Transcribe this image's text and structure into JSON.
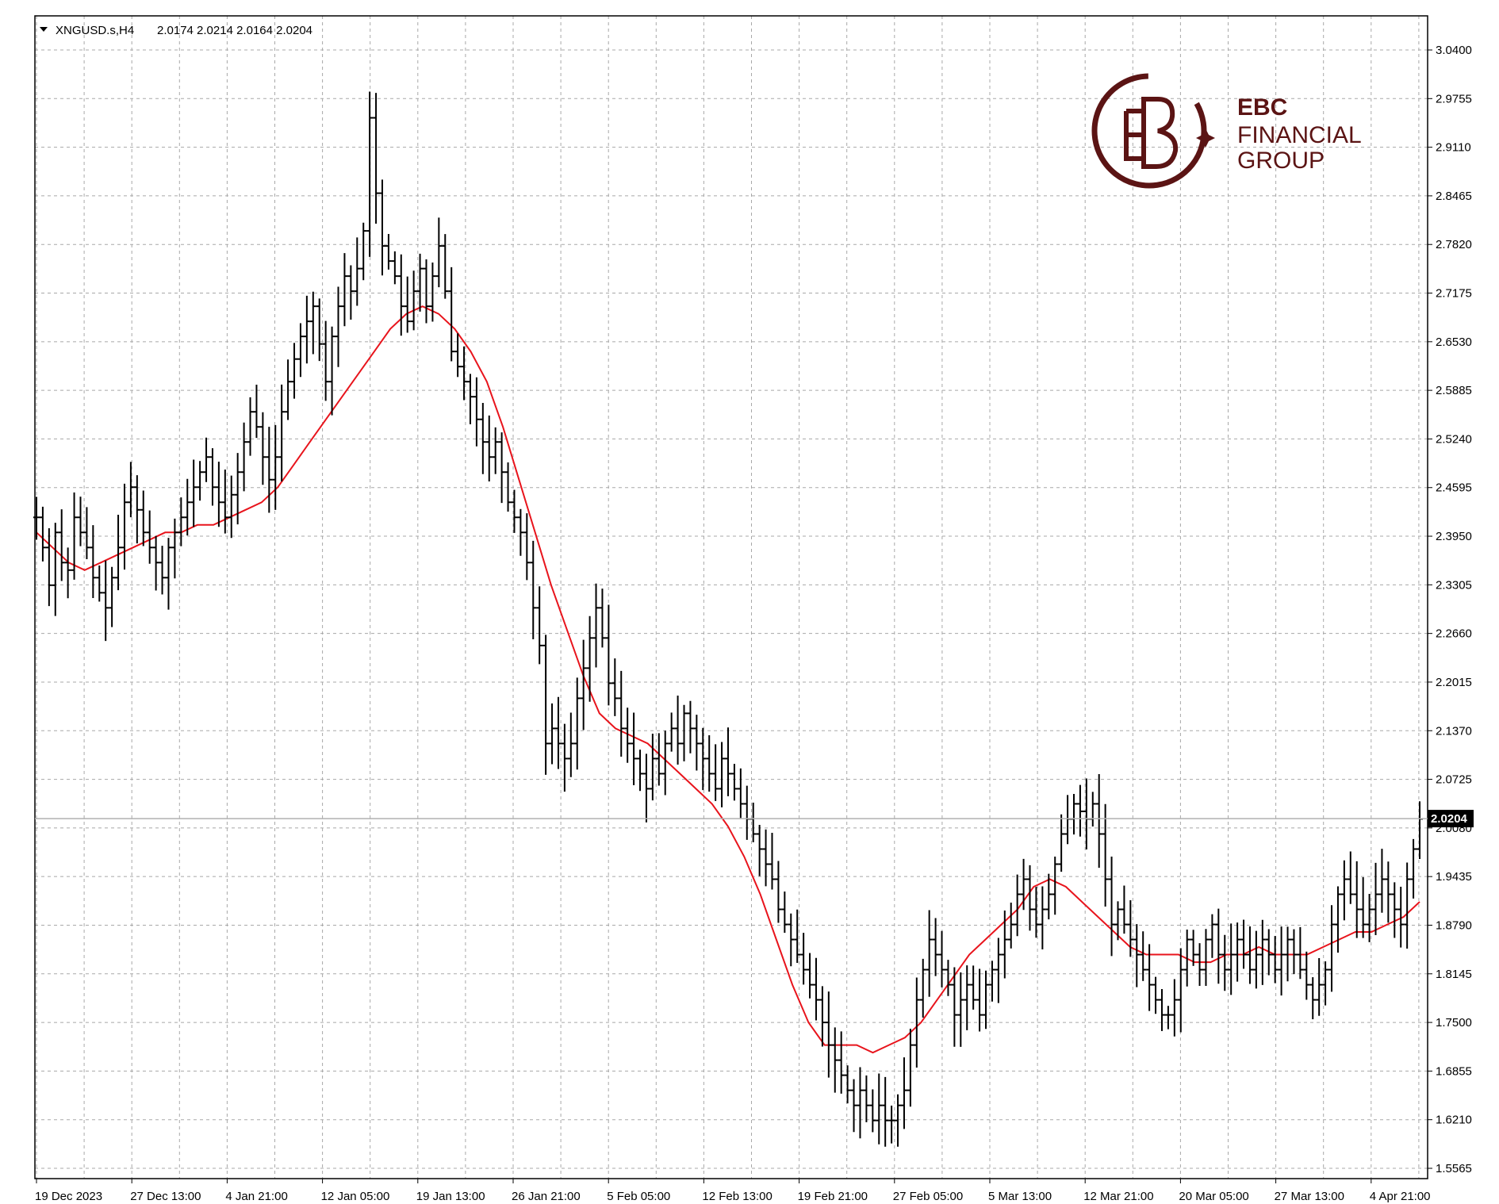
{
  "chart_data": {
    "type": "bar",
    "subtype": "ohlc",
    "symbol": "XNGUSD.s,H4",
    "header_values": [
      "2.0174",
      "2.0214",
      "2.0164",
      "2.0204"
    ],
    "last_price_label": "2.0204",
    "last_price": 2.0204,
    "ylim": [
      1.5565,
      3.04
    ],
    "yticks": [
      "3.0400",
      "2.9755",
      "2.9110",
      "2.8465",
      "2.7820",
      "2.7175",
      "2.6530",
      "2.5885",
      "2.5240",
      "2.4595",
      "2.3950",
      "2.3305",
      "2.2660",
      "2.2015",
      "2.1370",
      "2.0725",
      "2.0080",
      "1.9435",
      "1.8790",
      "1.8145",
      "1.7500",
      "1.6855",
      "1.6210",
      "1.5565"
    ],
    "xticks": [
      "19 Dec 2023",
      "27 Dec 13:00",
      "4 Jan 21:00",
      "12 Jan 05:00",
      "19 Jan 13:00",
      "26 Jan 21:00",
      "5 Feb 05:00",
      "12 Feb 13:00",
      "19 Feb 21:00",
      "27 Feb 05:00",
      "5 Mar 13:00",
      "12 Mar 21:00",
      "20 Mar 05:00",
      "27 Mar 13:00",
      "4 Apr 21:00"
    ],
    "grid": true,
    "price_path": [
      2.42,
      2.38,
      2.33,
      2.4,
      2.36,
      2.35,
      2.42,
      2.4,
      2.38,
      2.34,
      2.32,
      2.3,
      2.34,
      2.38,
      2.44,
      2.46,
      2.43,
      2.4,
      2.38,
      2.36,
      2.34,
      2.38,
      2.4,
      2.42,
      2.44,
      2.46,
      2.48,
      2.5,
      2.46,
      2.44,
      2.42,
      2.45,
      2.48,
      2.52,
      2.56,
      2.54,
      2.5,
      2.47,
      2.5,
      2.56,
      2.6,
      2.63,
      2.66,
      2.68,
      2.7,
      2.65,
      2.6,
      2.66,
      2.7,
      2.74,
      2.72,
      2.75,
      2.8,
      2.95,
      2.85,
      2.78,
      2.76,
      2.74,
      2.7,
      2.68,
      2.72,
      2.75,
      2.7,
      2.74,
      2.78,
      2.72,
      2.64,
      2.62,
      2.6,
      2.58,
      2.55,
      2.52,
      2.5,
      2.52,
      2.48,
      2.44,
      2.42,
      2.4,
      2.36,
      2.3,
      2.25,
      2.12,
      2.14,
      2.12,
      2.1,
      2.12,
      2.18,
      2.22,
      2.26,
      2.3,
      2.26,
      2.2,
      2.18,
      2.14,
      2.12,
      2.1,
      2.08,
      2.06,
      2.1,
      2.08,
      2.12,
      2.14,
      2.12,
      2.16,
      2.14,
      2.12,
      2.1,
      2.08,
      2.06,
      2.1,
      2.08,
      2.06,
      2.04,
      2.02,
      2.0,
      1.98,
      1.96,
      1.94,
      1.9,
      1.88,
      1.86,
      1.84,
      1.82,
      1.8,
      1.78,
      1.75,
      1.72,
      1.7,
      1.68,
      1.66,
      1.64,
      1.66,
      1.64,
      1.62,
      1.64,
      1.62,
      1.62,
      1.64,
      1.66,
      1.72,
      1.78,
      1.82,
      1.86,
      1.84,
      1.82,
      1.8,
      1.76,
      1.78,
      1.8,
      1.78,
      1.76,
      1.8,
      1.82,
      1.84,
      1.86,
      1.88,
      1.92,
      1.94,
      1.9,
      1.88,
      1.9,
      1.92,
      1.96,
      2.0,
      2.02,
      2.04,
      2.03,
      2.02,
      2.04,
      2.0,
      1.94,
      1.88,
      1.9,
      1.88,
      1.86,
      1.84,
      1.82,
      1.8,
      1.78,
      1.76,
      1.76,
      1.78,
      1.82,
      1.86,
      1.84,
      1.82,
      1.86,
      1.88,
      1.84,
      1.82,
      1.84,
      1.86,
      1.84,
      1.82,
      1.84,
      1.86,
      1.84,
      1.82,
      1.84,
      1.86,
      1.84,
      1.82,
      1.8,
      1.78,
      1.8,
      1.82,
      1.88,
      1.92,
      1.94,
      1.92,
      1.9,
      1.88,
      1.9,
      1.92,
      1.94,
      1.92,
      1.9,
      1.88,
      1.94,
      1.98,
      2.02
    ],
    "ma_path": [
      2.4,
      2.38,
      2.36,
      2.35,
      2.36,
      2.37,
      2.38,
      2.39,
      2.4,
      2.4,
      2.41,
      2.41,
      2.42,
      2.43,
      2.44,
      2.46,
      2.49,
      2.52,
      2.55,
      2.58,
      2.61,
      2.64,
      2.67,
      2.69,
      2.7,
      2.69,
      2.67,
      2.64,
      2.6,
      2.54,
      2.47,
      2.4,
      2.33,
      2.27,
      2.21,
      2.16,
      2.14,
      2.13,
      2.12,
      2.1,
      2.08,
      2.06,
      2.04,
      2.01,
      1.97,
      1.92,
      1.86,
      1.8,
      1.75,
      1.72,
      1.72,
      1.72,
      1.71,
      1.72,
      1.73,
      1.75,
      1.78,
      1.81,
      1.84,
      1.86,
      1.88,
      1.9,
      1.93,
      1.94,
      1.93,
      1.91,
      1.89,
      1.87,
      1.85,
      1.84,
      1.84,
      1.84,
      1.83,
      1.83,
      1.84,
      1.84,
      1.85,
      1.84,
      1.84,
      1.84,
      1.85,
      1.86,
      1.87,
      1.87,
      1.88,
      1.89,
      1.91
    ]
  },
  "logo": {
    "line1": "EBC",
    "line2": "FINANCIAL",
    "line3": "GROUP"
  }
}
